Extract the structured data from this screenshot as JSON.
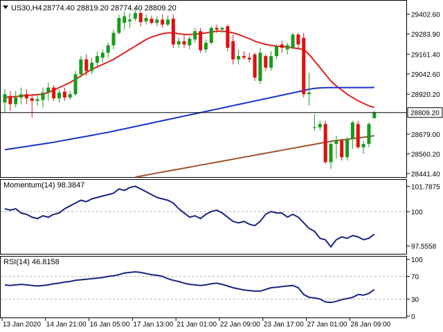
{
  "header": {
    "symbol_label": "US30,H4",
    "ohlc": "28774.40 28819.20 28774.40 28809.20"
  },
  "colors": {
    "up": "#1a9a1a",
    "down": "#e01010",
    "sma_fast": "#e02020",
    "sma_mid": "#1a2fc8",
    "sma_slow": "#a0522d",
    "indicator_line": "#1a237e",
    "grid_dash": "#b0b0b0",
    "price_line": "#000000",
    "price_tag_bg": "#ffffff"
  },
  "chart_data": [
    {
      "type": "candlestick",
      "symbol": "US30",
      "timeframe": "H4",
      "ylim": [
        28420,
        29480
      ],
      "y_ticks": [
        "29402.60",
        "29283.90",
        "29161.40",
        "29042.60",
        "28920.20",
        "28679.00",
        "28560.20",
        "28441.40"
      ],
      "current_price": "28809.20",
      "x_labels": [
        "13 Jan 2020",
        "14 Jan 21:00",
        "16 Jan 05:00",
        "17 Jan 13:00",
        "21 Jan 01:00",
        "22 Jan 09:00",
        "23 Jan 17:00",
        "27 Jan 01:00",
        "28 Jan 09:00"
      ],
      "x_label_index": [
        0,
        8,
        16,
        24,
        32,
        40,
        48,
        56,
        64
      ],
      "candles": [
        {
          "o": 28870,
          "h": 28950,
          "l": 28810,
          "c": 28920
        },
        {
          "o": 28905,
          "h": 28940,
          "l": 28820,
          "c": 28860
        },
        {
          "o": 28860,
          "h": 28940,
          "l": 28840,
          "c": 28900
        },
        {
          "o": 28900,
          "h": 28960,
          "l": 28860,
          "c": 28920
        },
        {
          "o": 28920,
          "h": 28950,
          "l": 28860,
          "c": 28895
        },
        {
          "o": 28895,
          "h": 28920,
          "l": 28780,
          "c": 28880
        },
        {
          "o": 28880,
          "h": 28910,
          "l": 28850,
          "c": 28890
        },
        {
          "o": 28885,
          "h": 28960,
          "l": 28840,
          "c": 28930
        },
        {
          "o": 28930,
          "h": 28990,
          "l": 28880,
          "c": 28960
        },
        {
          "o": 28960,
          "h": 28975,
          "l": 28880,
          "c": 28895
        },
        {
          "o": 28895,
          "h": 28950,
          "l": 28870,
          "c": 28930
        },
        {
          "o": 28935,
          "h": 28960,
          "l": 28880,
          "c": 28900
        },
        {
          "o": 28900,
          "h": 28940,
          "l": 28885,
          "c": 28920
        },
        {
          "o": 28920,
          "h": 29060,
          "l": 28910,
          "c": 29040
        },
        {
          "o": 29040,
          "h": 29150,
          "l": 29020,
          "c": 29130
        },
        {
          "o": 29130,
          "h": 29160,
          "l": 29030,
          "c": 29060
        },
        {
          "o": 29060,
          "h": 29140,
          "l": 29040,
          "c": 29110
        },
        {
          "o": 29110,
          "h": 29175,
          "l": 29090,
          "c": 29150
        },
        {
          "o": 29140,
          "h": 29190,
          "l": 29110,
          "c": 29170
        },
        {
          "o": 29170,
          "h": 29230,
          "l": 29140,
          "c": 29215
        },
        {
          "o": 29215,
          "h": 29310,
          "l": 29190,
          "c": 29290
        },
        {
          "o": 29290,
          "h": 29400,
          "l": 29280,
          "c": 29380
        },
        {
          "o": 29350,
          "h": 29420,
          "l": 29310,
          "c": 29390
        },
        {
          "o": 29360,
          "h": 29410,
          "l": 29320,
          "c": 29370
        },
        {
          "o": 29375,
          "h": 29445,
          "l": 29360,
          "c": 29410
        },
        {
          "o": 29410,
          "h": 29420,
          "l": 29330,
          "c": 29355
        },
        {
          "o": 29360,
          "h": 29400,
          "l": 29340,
          "c": 29380
        },
        {
          "o": 29375,
          "h": 29395,
          "l": 29340,
          "c": 29350
        },
        {
          "o": 29350,
          "h": 29390,
          "l": 29330,
          "c": 29370
        },
        {
          "o": 29370,
          "h": 29400,
          "l": 29320,
          "c": 29340
        },
        {
          "o": 29340,
          "h": 29395,
          "l": 29330,
          "c": 29370
        },
        {
          "o": 29375,
          "h": 29400,
          "l": 29200,
          "c": 29220
        },
        {
          "o": 29220,
          "h": 29260,
          "l": 29200,
          "c": 29240
        },
        {
          "o": 29240,
          "h": 29275,
          "l": 29200,
          "c": 29220
        },
        {
          "o": 29215,
          "h": 29270,
          "l": 29190,
          "c": 29255
        },
        {
          "o": 29250,
          "h": 29320,
          "l": 29230,
          "c": 29300
        },
        {
          "o": 29300,
          "h": 29320,
          "l": 29170,
          "c": 29185
        },
        {
          "o": 29190,
          "h": 29250,
          "l": 29170,
          "c": 29230
        },
        {
          "o": 29230,
          "h": 29330,
          "l": 29220,
          "c": 29320
        },
        {
          "o": 29320,
          "h": 29340,
          "l": 29290,
          "c": 29310
        },
        {
          "o": 29310,
          "h": 29330,
          "l": 29290,
          "c": 29320
        },
        {
          "o": 29330,
          "h": 29340,
          "l": 29180,
          "c": 29200
        },
        {
          "o": 29240,
          "h": 29280,
          "l": 29100,
          "c": 29130
        },
        {
          "o": 29130,
          "h": 29190,
          "l": 29100,
          "c": 29150
        },
        {
          "o": 29150,
          "h": 29180,
          "l": 29130,
          "c": 29140
        },
        {
          "o": 29140,
          "h": 29170,
          "l": 29110,
          "c": 29130
        },
        {
          "o": 29160,
          "h": 29170,
          "l": 29000,
          "c": 29020
        },
        {
          "o": 29000,
          "h": 29200,
          "l": 28980,
          "c": 29170
        },
        {
          "o": 29150,
          "h": 29160,
          "l": 29060,
          "c": 29080
        },
        {
          "o": 29080,
          "h": 29180,
          "l": 29060,
          "c": 29150
        },
        {
          "o": 29150,
          "h": 29220,
          "l": 29130,
          "c": 29210
        },
        {
          "o": 29220,
          "h": 29240,
          "l": 29170,
          "c": 29200
        },
        {
          "o": 29190,
          "h": 29230,
          "l": 29160,
          "c": 29215
        },
        {
          "o": 29200,
          "h": 29290,
          "l": 29190,
          "c": 29280
        },
        {
          "o": 29280,
          "h": 29290,
          "l": 29190,
          "c": 29220
        },
        {
          "o": 29260,
          "h": 29290,
          "l": 28900,
          "c": 28920
        },
        {
          "o": 28920,
          "h": 29050,
          "l": 28850,
          "c": 28930
        },
        {
          "o": 28720,
          "h": 28800,
          "l": 28700,
          "c": 28720
        },
        {
          "o": 28720,
          "h": 28760,
          "l": 28700,
          "c": 28740
        },
        {
          "o": 28740,
          "h": 28760,
          "l": 28500,
          "c": 28510
        },
        {
          "o": 28510,
          "h": 28640,
          "l": 28470,
          "c": 28620
        },
        {
          "o": 28620,
          "h": 28670,
          "l": 28530,
          "c": 28640
        },
        {
          "o": 28640,
          "h": 28650,
          "l": 28520,
          "c": 28540
        },
        {
          "o": 28540,
          "h": 28660,
          "l": 28520,
          "c": 28650
        },
        {
          "o": 28650,
          "h": 28760,
          "l": 28590,
          "c": 28750
        },
        {
          "o": 28740,
          "h": 28760,
          "l": 28590,
          "c": 28600
        },
        {
          "o": 28600,
          "h": 28640,
          "l": 28560,
          "c": 28620
        },
        {
          "o": 28620,
          "h": 28750,
          "l": 28600,
          "c": 28740
        },
        {
          "o": 28775,
          "h": 28820,
          "l": 28775,
          "c": 28810
        }
      ],
      "series": [
        {
          "name": "SMA fast",
          "color": "#e02020",
          "values": [
            28900,
            28905,
            28905,
            28910,
            28912,
            28915,
            28918,
            28920,
            28930,
            28945,
            28960,
            28975,
            28990,
            29010,
            29030,
            29050,
            29070,
            29085,
            29100,
            29115,
            29130,
            29150,
            29170,
            29190,
            29210,
            29230,
            29250,
            29265,
            29275,
            29285,
            29290,
            29290,
            29285,
            29280,
            29280,
            29282,
            29285,
            29290,
            29295,
            29300,
            29300,
            29297,
            29290,
            29280,
            29268,
            29255,
            29240,
            29230,
            29220,
            29215,
            29210,
            29208,
            29205,
            29200,
            29195,
            29190,
            29160,
            29120,
            29080,
            29040,
            29000,
            28970,
            28945,
            28920,
            28900,
            28880,
            28865,
            28850,
            28840
          ]
        },
        {
          "name": "SMA mid",
          "color": "#1a2fc8",
          "values": [
            28585,
            28590,
            28595,
            28600,
            28605,
            28610,
            28615,
            28620,
            28625,
            28630,
            28636,
            28642,
            28648,
            28654,
            28660,
            28666,
            28672,
            28678,
            28684,
            28690,
            28697,
            28704,
            28711,
            28718,
            28725,
            28732,
            28739,
            28746,
            28753,
            28760,
            28767,
            28774,
            28781,
            28788,
            28795,
            28802,
            28809,
            28816,
            28823,
            28830,
            28837,
            28844,
            28851,
            28858,
            28865,
            28872,
            28879,
            28886,
            28893,
            28900,
            28907,
            28914,
            28921,
            28928,
            28935,
            28942,
            28950,
            28955,
            28958,
            28959,
            28960,
            28960,
            28960,
            28960,
            28960,
            28960,
            28960,
            28960,
            28961
          ]
        },
        {
          "name": "SMA slow",
          "color": "#a0522d",
          "values": [
            null,
            null,
            null,
            null,
            null,
            null,
            null,
            null,
            null,
            null,
            null,
            null,
            null,
            null,
            null,
            null,
            null,
            null,
            null,
            null,
            null,
            null,
            null,
            null,
            28420,
            28426,
            28432,
            28438,
            28444,
            28450,
            28456,
            28462,
            28468,
            28474,
            28480,
            28486,
            28492,
            28498,
            28504,
            28510,
            28516,
            28522,
            28528,
            28534,
            28540,
            28546,
            28552,
            28558,
            28564,
            28570,
            28576,
            28582,
            28588,
            28594,
            28600,
            28606,
            28612,
            28618,
            28624,
            28630,
            28636,
            28640,
            28644,
            28648,
            28652,
            28656,
            28660,
            28664,
            28670
          ]
        }
      ]
    },
    {
      "type": "line",
      "title": "Momentum(14) 98.3847",
      "ylim": [
        97.0,
        102.2
      ],
      "y_ticks": [
        "101.7875",
        "100",
        "97.5558"
      ],
      "levels": [
        100
      ],
      "series": [
        {
          "name": "Momentum(14)",
          "color": "#1a237e",
          "values": [
            100.2,
            100.1,
            100.2,
            99.9,
            99.8,
            99.6,
            99.5,
            99.7,
            99.6,
            99.8,
            99.9,
            100.2,
            100.4,
            100.6,
            100.8,
            100.7,
            100.9,
            101.0,
            101.1,
            101.2,
            101.3,
            101.6,
            101.5,
            101.7,
            101.8,
            101.6,
            101.4,
            101.2,
            101.0,
            100.9,
            100.8,
            100.6,
            100.2,
            99.9,
            99.6,
            99.7,
            99.5,
            99.8,
            100.0,
            100.1,
            99.9,
            99.6,
            99.3,
            99.2,
            99.3,
            99.1,
            99.0,
            99.3,
            99.8,
            100.0,
            99.9,
            99.9,
            99.6,
            99.8,
            99.6,
            99.2,
            98.8,
            98.6,
            98.1,
            98.0,
            97.5,
            98.0,
            98.2,
            98.1,
            98.3,
            98.2,
            98.0,
            98.1,
            98.4
          ]
        }
      ]
    },
    {
      "type": "line",
      "title": "RSI(14) 46.8158",
      "ylim": [
        0,
        100
      ],
      "y_ticks": [
        "100",
        "70",
        "30",
        "0"
      ],
      "levels": [
        70,
        30
      ],
      "series": [
        {
          "name": "RSI(14)",
          "color": "#1a237e",
          "values": [
            55,
            54,
            55,
            56,
            55,
            54,
            53,
            54,
            55,
            57,
            58,
            60,
            61,
            63,
            64,
            65,
            66,
            67,
            68,
            70,
            71,
            73,
            76,
            77,
            78,
            77,
            75,
            73,
            72,
            70,
            66,
            63,
            61,
            58,
            56,
            55,
            54,
            55,
            57,
            58,
            56,
            53,
            50,
            48,
            46,
            45,
            44,
            44,
            47,
            50,
            51,
            52,
            53,
            54,
            50,
            38,
            33,
            32,
            30,
            25,
            24,
            26,
            29,
            31,
            33,
            38,
            37,
            40,
            47
          ]
        }
      ]
    }
  ]
}
